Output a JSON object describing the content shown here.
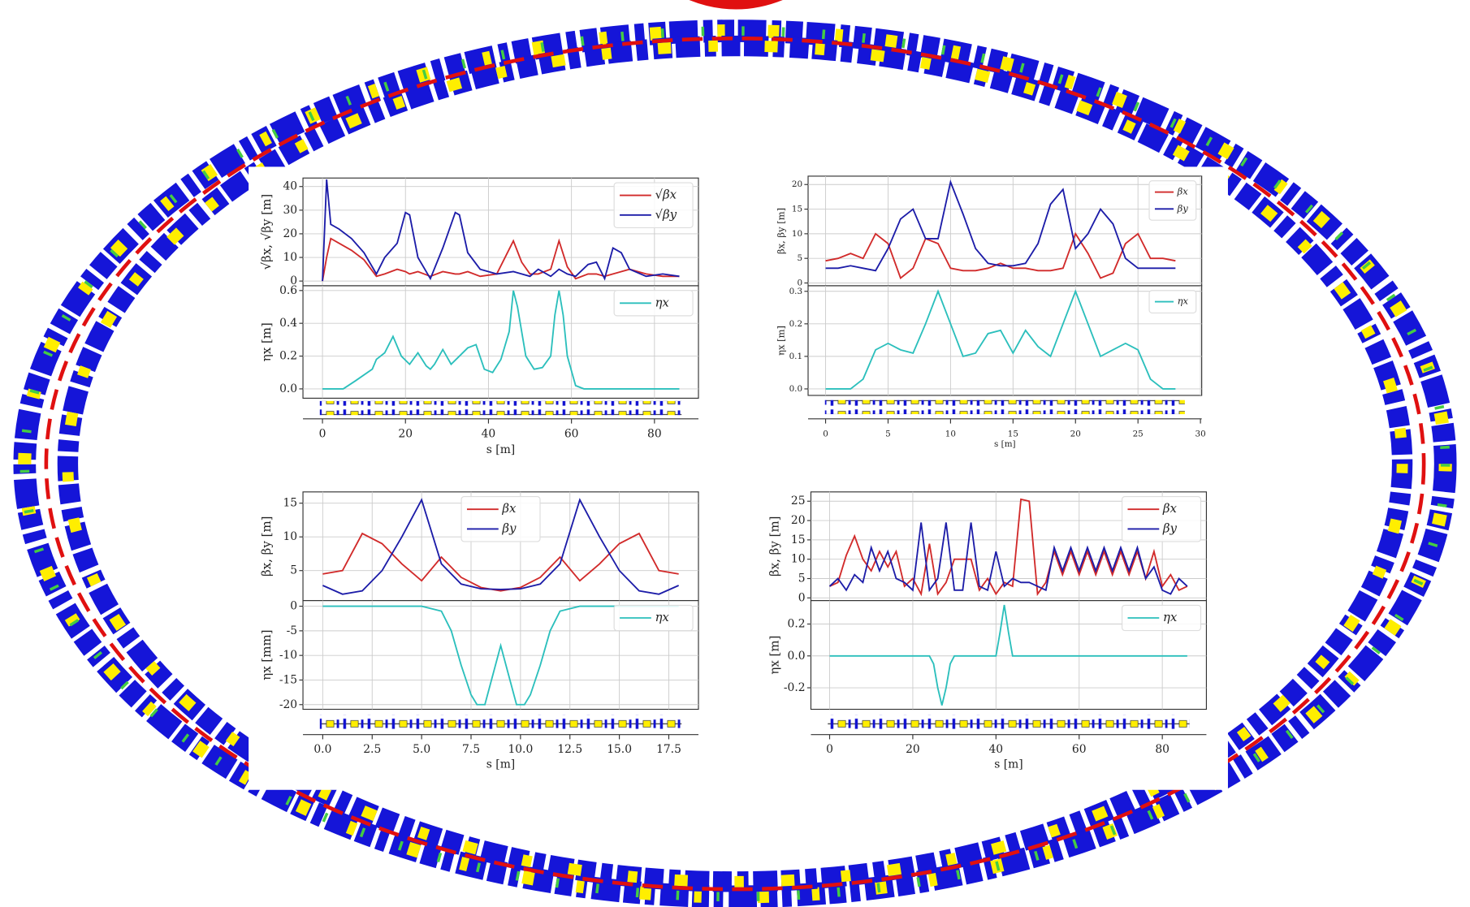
{
  "chart_data": [
    {
      "type": "line",
      "xlabel": "s [m]",
      "xlim": [
        -4.7,
        90.6
      ],
      "xticks": [
        0,
        20,
        40,
        60,
        80
      ],
      "grid": true,
      "panels": [
        {
          "ylabel": "√βx, √βy [m]",
          "ylim": [
            -2,
            43.6
          ],
          "yticks": [
            0,
            10,
            20,
            30,
            40
          ],
          "legend": "upper right",
          "x": [
            0,
            1,
            2,
            4,
            7,
            10,
            13,
            15,
            18,
            20,
            21,
            23,
            26,
            29,
            32,
            33,
            35,
            38,
            42,
            46,
            48,
            50,
            52,
            55,
            57,
            59,
            61,
            64,
            66,
            68,
            70,
            72,
            74,
            78,
            82,
            86
          ],
          "series": [
            {
              "name": "√βx",
              "color": "#d12a2a",
              "values": [
                0,
                10,
                18,
                16,
                13,
                9,
                2,
                3,
                5,
                4,
                3,
                4,
                2,
                4,
                3,
                3,
                4,
                2,
                3,
                17,
                8,
                3,
                3,
                5,
                17,
                6,
                1,
                3,
                3,
                2,
                3,
                4,
                5,
                3,
                2,
                2
              ]
            },
            {
              "name": "√βy",
              "color": "#1c1ca8",
              "values": [
                0,
                43,
                24,
                22,
                18,
                12,
                3,
                10,
                16,
                29,
                28,
                10,
                1,
                14,
                29,
                28,
                12,
                5,
                3,
                4,
                3,
                2,
                5,
                2,
                5,
                3,
                2,
                7,
                8,
                1,
                14,
                12,
                5,
                2,
                3,
                2
              ]
            }
          ]
        },
        {
          "ylabel": "ηx [m]",
          "ylim": [
            -0.057,
            0.629
          ],
          "yticks": [
            {
              "value": 0,
              "label": "0.0"
            },
            0.2,
            0.4,
            0.6
          ],
          "legend": "upper right",
          "x": [
            0,
            5,
            8,
            12,
            13,
            15,
            17,
            19,
            21,
            23,
            25,
            26,
            27,
            29,
            31,
            33,
            35,
            37,
            39,
            41,
            43,
            45,
            46,
            47,
            49,
            51,
            53,
            55,
            56,
            57,
            58,
            59,
            61,
            63,
            70,
            80,
            86
          ],
          "series": [
            {
              "name": "ηx",
              "color": "#2bbfbc",
              "values": [
                0,
                0,
                0.05,
                0.12,
                0.18,
                0.22,
                0.32,
                0.2,
                0.15,
                0.22,
                0.14,
                0.12,
                0.15,
                0.24,
                0.15,
                0.2,
                0.25,
                0.27,
                0.12,
                0.1,
                0.18,
                0.35,
                0.6,
                0.5,
                0.2,
                0.12,
                0.13,
                0.2,
                0.45,
                0.6,
                0.45,
                0.2,
                0.02,
                0,
                0,
                0,
                0
              ]
            }
          ]
        }
      ]
    },
    {
      "type": "line",
      "xlabel": "s [m]",
      "xlim": [
        -1.4,
        30.1
      ],
      "xticks": [
        0,
        5,
        10,
        15,
        20,
        25,
        30
      ],
      "grid": true,
      "panels": [
        {
          "ylabel": "βx, βy [m]",
          "ylim": [
            -0.57,
            21.7
          ],
          "yticks": [
            0,
            5,
            10,
            15,
            20
          ],
          "legend": "upper right",
          "x": [
            0,
            1,
            2,
            3,
            4,
            5,
            6,
            7,
            8,
            9,
            10,
            11,
            12,
            13,
            14,
            15,
            16,
            17,
            18,
            19,
            20,
            21,
            22,
            23,
            24,
            25,
            26,
            27,
            28
          ],
          "series": [
            {
              "name": "βx",
              "color": "#d12a2a",
              "values": [
                4.5,
                5,
                6,
                5,
                10,
                8,
                1,
                3,
                9,
                8,
                3,
                2.5,
                2.5,
                3,
                4,
                3,
                3,
                2.5,
                2.5,
                3,
                10,
                6,
                1,
                2,
                8,
                10,
                5,
                5,
                4.5
              ]
            },
            {
              "name": "βy",
              "color": "#1c1ca8",
              "values": [
                3,
                3,
                3.5,
                3,
                2.5,
                7,
                13,
                15,
                9,
                9,
                20.5,
                14,
                7,
                4,
                3.5,
                3.5,
                4,
                8,
                16,
                19,
                7,
                10,
                15,
                12,
                5,
                3,
                3,
                3,
                3
              ]
            }
          ]
        },
        {
          "ylabel": "ηx [m]",
          "ylim": [
            -0.02,
            0.317
          ],
          "yticks": [
            {
              "value": 0,
              "label": "0.0"
            },
            0.1,
            0.2,
            0.3
          ],
          "legend": "upper right",
          "x": [
            0,
            1,
            2,
            3,
            4,
            5,
            6,
            7,
            8,
            9,
            10,
            11,
            12,
            13,
            14,
            15,
            16,
            17,
            18,
            19,
            20,
            21,
            22,
            23,
            24,
            25,
            26,
            27,
            28
          ],
          "series": [
            {
              "name": "ηx",
              "color": "#2bbfbc",
              "values": [
                0,
                0,
                0,
                0.03,
                0.12,
                0.14,
                0.12,
                0.11,
                0.2,
                0.3,
                0.2,
                0.1,
                0.11,
                0.17,
                0.18,
                0.11,
                0.18,
                0.13,
                0.1,
                0.2,
                0.3,
                0.2,
                0.1,
                0.12,
                0.14,
                0.12,
                0.03,
                0,
                0
              ]
            }
          ]
        }
      ]
    },
    {
      "type": "line",
      "xlabel": "s [m]",
      "xlim": [
        -1.0,
        19.0
      ],
      "xticks": [
        {
          "value": 0,
          "label": "0.0"
        },
        2.5,
        {
          "value": 5,
          "label": "5.0"
        },
        7.5,
        {
          "value": 10,
          "label": "10.0"
        },
        12.5,
        {
          "value": 15,
          "label": "15.0"
        },
        17.5
      ],
      "grid": true,
      "panels": [
        {
          "ylabel": "βx, βy [m]",
          "ylim": [
            0.55,
            16.67
          ],
          "yticks": [
            5,
            10,
            15
          ],
          "legend": "upper center",
          "x": [
            0,
            1,
            2,
            3,
            4,
            5,
            6,
            7,
            8,
            9,
            10,
            11,
            12,
            13,
            14,
            15,
            16,
            17,
            18
          ],
          "series": [
            {
              "name": "βx",
              "color": "#d12a2a",
              "values": [
                4.5,
                5,
                10.5,
                9,
                6,
                3.5,
                7,
                4,
                2.5,
                2,
                2.5,
                4,
                7,
                3.5,
                6,
                9,
                10.5,
                5,
                4.5
              ]
            },
            {
              "name": "βy",
              "color": "#1c1ca8",
              "values": [
                2.8,
                1.5,
                2,
                5,
                10,
                15.5,
                6,
                3,
                2.3,
                2.2,
                2.3,
                3,
                6,
                15.5,
                10,
                5,
                2,
                1.5,
                2.8
              ]
            }
          ]
        },
        {
          "ylabel": "ηx [mm]",
          "ylim": [
            -20.95,
            1.14
          ],
          "yticks": [
            0,
            -5,
            -10,
            -15,
            -20
          ],
          "legend": "upper right",
          "x": [
            0,
            5,
            6,
            6.5,
            7,
            7.5,
            7.8,
            8.2,
            8.6,
            9,
            9.4,
            9.8,
            10.2,
            10.5,
            11,
            11.5,
            12,
            13,
            18
          ],
          "series": [
            {
              "name": "ηx",
              "color": "#2bbfbc",
              "values": [
                0,
                0,
                -1,
                -5,
                -12,
                -18,
                -20,
                -20,
                -14,
                -8,
                -14,
                -20,
                -20,
                -18,
                -12,
                -5,
                -1,
                0,
                0
              ]
            }
          ]
        }
      ]
    },
    {
      "type": "line",
      "xlabel": "s [m]",
      "xlim": [
        -4.5,
        90.6
      ],
      "xticks": [
        0,
        20,
        40,
        60,
        80
      ],
      "grid": true,
      "panels": [
        {
          "ylabel": "βx, βy [m]",
          "ylim": [
            -0.7,
            27.4
          ],
          "yticks": [
            0,
            5,
            10,
            15,
            20,
            25
          ],
          "legend": "upper right",
          "x": [
            0,
            2,
            4,
            6,
            8,
            10,
            12,
            14,
            16,
            18,
            20,
            22,
            24,
            26,
            28,
            30,
            32,
            34,
            36,
            38,
            40,
            42,
            44,
            46,
            48,
            50,
            52,
            54,
            56,
            58,
            60,
            62,
            64,
            66,
            68,
            70,
            72,
            74,
            76,
            78,
            80,
            82,
            84,
            86
          ],
          "series": [
            {
              "name": "βx",
              "color": "#d12a2a",
              "values": [
                3,
                4,
                11,
                16,
                10,
                7,
                12,
                8,
                12,
                3,
                5,
                1,
                14,
                1,
                4,
                10,
                10,
                10,
                2,
                5,
                1,
                4,
                3,
                25.5,
                25,
                1,
                4,
                12,
                6,
                12,
                6,
                12,
                6,
                12,
                6,
                12,
                6,
                12,
                5,
                12,
                3,
                6,
                2,
                3
              ]
            },
            {
              "name": "βy",
              "color": "#1c1ca8",
              "values": [
                3,
                5,
                2,
                6,
                4,
                13,
                7,
                12,
                5,
                4,
                2,
                19.5,
                2,
                5,
                19.5,
                2,
                2,
                19.5,
                3,
                2,
                12,
                3,
                5,
                4,
                4,
                3,
                2,
                13,
                7,
                13,
                7,
                13,
                7,
                13,
                7,
                13,
                7,
                13,
                5,
                8,
                2,
                1,
                5,
                3
              ]
            }
          ]
        },
        {
          "ylabel": "ηx [m]",
          "ylim": [
            -0.335,
            0.347
          ],
          "yticks": [
            -0.2,
            {
              "value": 0,
              "label": "0.0"
            },
            0.2
          ],
          "legend": "upper right",
          "x": [
            0,
            22,
            24,
            25,
            26,
            27,
            28,
            29,
            30,
            40,
            41,
            42,
            43,
            44,
            60,
            86
          ],
          "series": [
            {
              "name": "ηx",
              "color": "#2bbfbc",
              "values": [
                0,
                0,
                0,
                -0.05,
                -0.2,
                -0.31,
                -0.2,
                -0.05,
                0,
                0,
                0.15,
                0.32,
                0.15,
                0,
                0,
                0
              ]
            }
          ]
        }
      ]
    }
  ]
}
